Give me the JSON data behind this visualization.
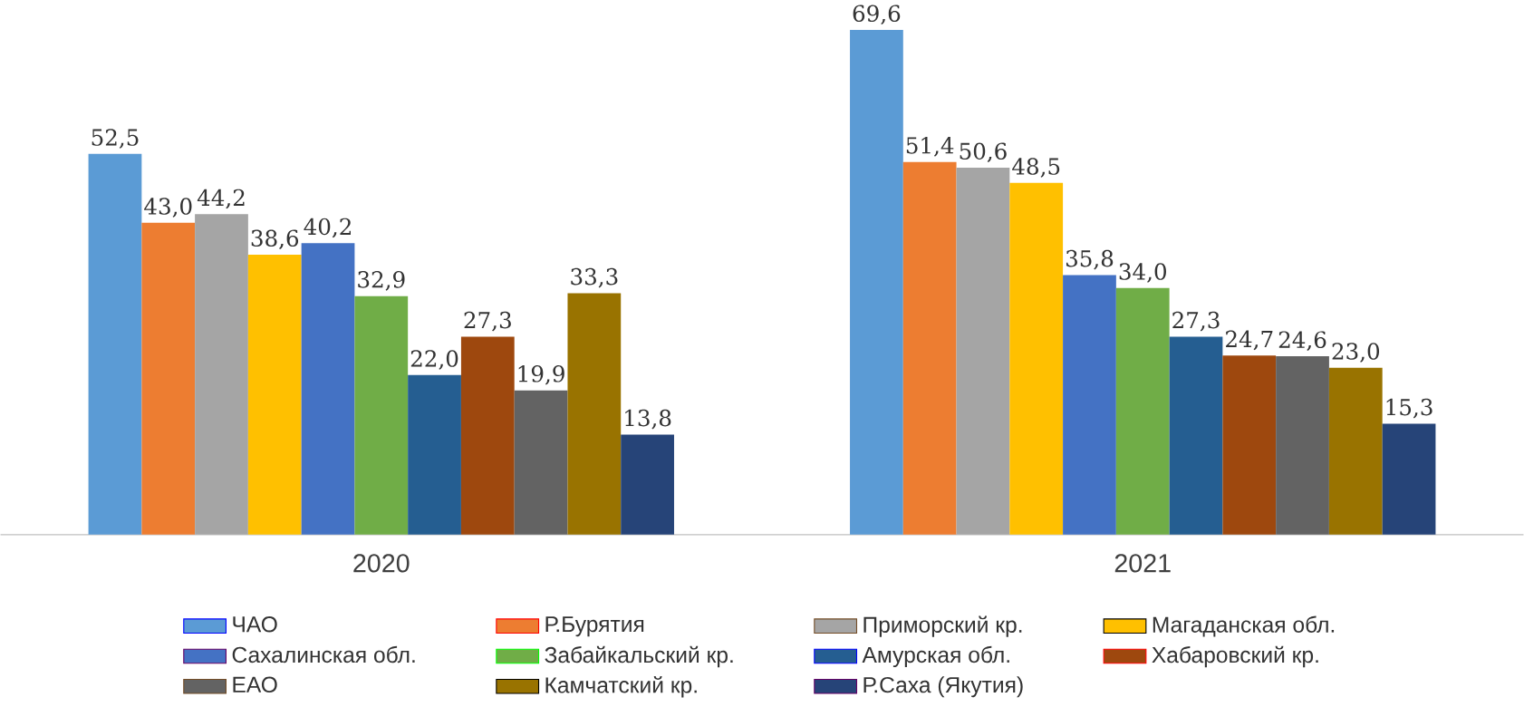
{
  "chart_data": {
    "type": "bar",
    "categories": [
      "2020",
      "2021"
    ],
    "legend": "bottom",
    "grid": false,
    "series": [
      {
        "name": "ЧАО",
        "color": "#5b9bd5",
        "values": [
          52.5,
          69.6
        ],
        "value_labels": [
          "52,5",
          "69,6"
        ]
      },
      {
        "name": "Р.Бурятия",
        "color": "#ed7d31",
        "values": [
          43.0,
          51.4
        ],
        "value_labels": [
          "43,0",
          "51,4"
        ]
      },
      {
        "name": "Приморский кр.",
        "color": "#a5a5a5",
        "values": [
          44.2,
          50.6
        ],
        "value_labels": [
          "44,2",
          "50,6"
        ]
      },
      {
        "name": "Магаданская обл.",
        "color": "#ffc000",
        "values": [
          38.6,
          48.5
        ],
        "value_labels": [
          "38,6",
          "48,5"
        ]
      },
      {
        "name": "Сахалинская обл.",
        "color": "#4472c4",
        "values": [
          40.2,
          35.8
        ],
        "value_labels": [
          "40,2",
          "35,8"
        ]
      },
      {
        "name": "Забайкальский кр.",
        "color": "#70ad47",
        "values": [
          32.9,
          34.0
        ],
        "value_labels": [
          "32,9",
          "34,0"
        ]
      },
      {
        "name": "Амурская обл.",
        "color": "#255e91",
        "values": [
          22.0,
          27.3
        ],
        "value_labels": [
          "22,0",
          "27,3"
        ]
      },
      {
        "name": "Хабаровский кр.",
        "color": "#9e480e",
        "values": [
          27.3,
          24.7
        ],
        "value_labels": [
          "27,3",
          "24,7"
        ]
      },
      {
        "name": "ЕАО",
        "color": "#636363",
        "values": [
          19.9,
          24.6
        ],
        "value_labels": [
          "19,9",
          "24,6"
        ]
      },
      {
        "name": "Камчатский кр.",
        "color": "#997300",
        "values": [
          33.3,
          23.0
        ],
        "value_labels": [
          "33,3",
          "23,0"
        ]
      },
      {
        "name": "Р.Саха (Якутия)",
        "color": "#264478",
        "values": [
          13.8,
          15.3
        ],
        "value_labels": [
          "13,8",
          "15,3"
        ]
      }
    ]
  }
}
